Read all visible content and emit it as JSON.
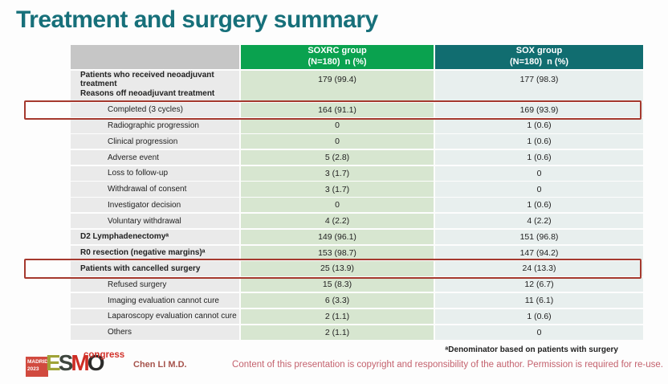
{
  "slide": {
    "title": "Treatment and surgery summary",
    "footnote": "ᵃDenominator based on patients with surgery",
    "copyright": "Content of this presentation is copyright and responsibility of the author.  Permission is required for re-use.",
    "author": "Chen LI M.D."
  },
  "logo": {
    "location": "MADRID",
    "year": "2023",
    "letters": [
      "E",
      "S",
      "M",
      "O"
    ],
    "congress": "congress"
  },
  "colors": {
    "title_teal": "#17707A",
    "soxrc_header_green": "#0AA24F",
    "sox_header_teal": "#116D70",
    "highlight_red": "#A5392E",
    "esmo_red": "#D2322A",
    "copyright_rose": "#C4626E"
  },
  "table": {
    "headers": [
      {
        "group": "",
        "sub": ""
      },
      {
        "group": "SOXRC group",
        "sub": "(N=180)  n (%)"
      },
      {
        "group": "SOX group",
        "sub": "(N=180)  n (%)"
      }
    ],
    "rows": [
      {
        "label": "Patients who received neoadjuvant treatment",
        "soxrc": "179 (99.4)",
        "sox": "177 (98.3)"
      },
      {
        "label": "Reasons off neoadjuvant treatment",
        "soxrc": "",
        "sox": ""
      },
      {
        "label": "Completed (3 cycles)",
        "soxrc": "164 (91.1)",
        "sox": "169 (93.9)"
      },
      {
        "label": "Radiographic progression",
        "soxrc": "0",
        "sox": "1 (0.6)"
      },
      {
        "label": "Clinical progression",
        "soxrc": "0",
        "sox": "1 (0.6)"
      },
      {
        "label": "Adverse event",
        "soxrc": "5 (2.8)",
        "sox": "1 (0.6)"
      },
      {
        "label": "Loss to follow-up",
        "soxrc": "3 (1.7)",
        "sox": "0"
      },
      {
        "label": "Withdrawal of consent",
        "soxrc": "3 (1.7)",
        "sox": "0"
      },
      {
        "label": "Investigator decision",
        "soxrc": "0",
        "sox": "1 (0.6)"
      },
      {
        "label": "Voluntary withdrawal",
        "soxrc": "4 (2.2)",
        "sox": "4 (2.2)"
      },
      {
        "label": "D2 Lymphadenectomyᵃ",
        "soxrc": "149 (96.1)",
        "sox": "151 (96.8)"
      },
      {
        "label": "R0 resection (negative margins)ᵃ",
        "soxrc": "153 (98.7)",
        "sox": "147 (94.2)"
      },
      {
        "label": "Patients with cancelled surgery",
        "soxrc": "25 (13.9)",
        "sox": "24 (13.3)"
      },
      {
        "label": "Refused surgery",
        "soxrc": "15 (8.3)",
        "sox": "12 (6.7)"
      },
      {
        "label": "Imaging evaluation cannot cure",
        "soxrc": "6 (3.3)",
        "sox": "11 (6.1)"
      },
      {
        "label": "Laparoscopy evaluation cannot cure",
        "soxrc": "2 (1.1)",
        "sox": "1 (0.6)"
      },
      {
        "label": "Others",
        "soxrc": "2 (1.1)",
        "sox": "0"
      }
    ]
  }
}
